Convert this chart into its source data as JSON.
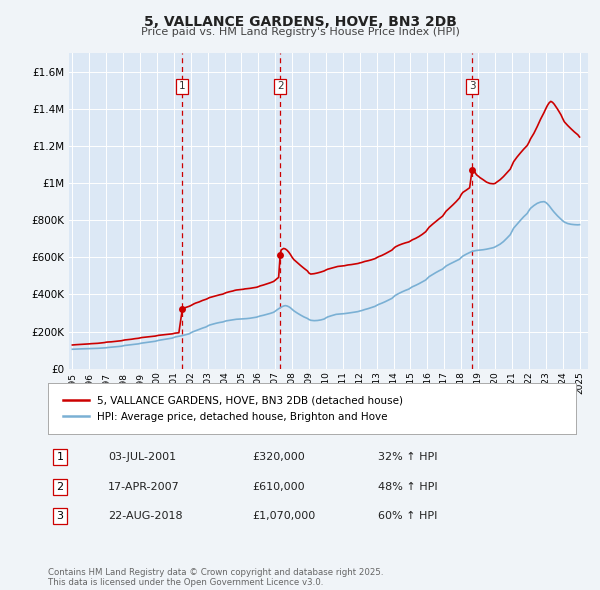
{
  "title": "5, VALLANCE GARDENS, HOVE, BN3 2DB",
  "subtitle": "Price paid vs. HM Land Registry's House Price Index (HPI)",
  "background_color": "#f0f4f8",
  "plot_bg_color": "#dce8f5",
  "grid_color": "#ffffff",
  "ylim": [
    0,
    1700000
  ],
  "yticks": [
    0,
    200000,
    400000,
    600000,
    800000,
    1000000,
    1200000,
    1400000,
    1600000
  ],
  "ytick_labels": [
    "£0",
    "£200K",
    "£400K",
    "£600K",
    "£800K",
    "£1M",
    "£1.2M",
    "£1.4M",
    "£1.6M"
  ],
  "sale_color": "#cc0000",
  "hpi_color": "#7ab0d4",
  "marker_color": "#cc0000",
  "vline_color": "#cc0000",
  "legend_entry1": "5, VALLANCE GARDENS, HOVE, BN3 2DB (detached house)",
  "legend_entry2": "HPI: Average price, detached house, Brighton and Hove",
  "transactions": [
    {
      "num": 1,
      "date": "03-JUL-2001",
      "price": "£320,000",
      "pct": "32% ↑ HPI",
      "x_year": 2001.5
    },
    {
      "num": 2,
      "date": "17-APR-2007",
      "price": "£610,000",
      "pct": "48% ↑ HPI",
      "x_year": 2007.29
    },
    {
      "num": 3,
      "date": "22-AUG-2018",
      "price": "£1,070,000",
      "pct": "60% ↑ HPI",
      "x_year": 2018.64
    }
  ],
  "footnote": "Contains HM Land Registry data © Crown copyright and database right 2025.\nThis data is licensed under the Open Government Licence v3.0.",
  "sale_data": [
    [
      1995.0,
      128000
    ],
    [
      1995.1,
      129000
    ],
    [
      1995.2,
      129500
    ],
    [
      1995.3,
      130000
    ],
    [
      1995.5,
      131000
    ],
    [
      1995.7,
      132000
    ],
    [
      1995.9,
      133000
    ],
    [
      1996.0,
      134000
    ],
    [
      1996.1,
      135000
    ],
    [
      1996.3,
      136000
    ],
    [
      1996.5,
      137000
    ],
    [
      1996.7,
      139000
    ],
    [
      1996.9,
      141000
    ],
    [
      1997.0,
      143000
    ],
    [
      1997.1,
      144000
    ],
    [
      1997.3,
      145000
    ],
    [
      1997.5,
      147000
    ],
    [
      1997.7,
      149000
    ],
    [
      1997.9,
      151000
    ],
    [
      1998.0,
      153000
    ],
    [
      1998.1,
      155000
    ],
    [
      1998.3,
      157000
    ],
    [
      1998.5,
      159000
    ],
    [
      1998.7,
      162000
    ],
    [
      1998.9,
      164000
    ],
    [
      1999.0,
      166000
    ],
    [
      1999.1,
      168000
    ],
    [
      1999.3,
      170000
    ],
    [
      1999.5,
      172000
    ],
    [
      1999.7,
      174000
    ],
    [
      1999.9,
      176000
    ],
    [
      2000.0,
      178000
    ],
    [
      2000.1,
      180000
    ],
    [
      2000.3,
      182000
    ],
    [
      2000.5,
      184000
    ],
    [
      2000.7,
      186000
    ],
    [
      2000.9,
      188000
    ],
    [
      2001.0,
      190000
    ],
    [
      2001.1,
      192000
    ],
    [
      2001.3,
      194000
    ],
    [
      2001.5,
      320000
    ],
    [
      2001.7,
      330000
    ],
    [
      2001.9,
      336000
    ],
    [
      2002.0,
      340000
    ],
    [
      2002.1,
      345000
    ],
    [
      2002.2,
      350000
    ],
    [
      2002.3,
      354000
    ],
    [
      2002.5,
      360000
    ],
    [
      2002.7,
      368000
    ],
    [
      2002.9,
      374000
    ],
    [
      2003.0,
      378000
    ],
    [
      2003.1,
      383000
    ],
    [
      2003.3,
      388000
    ],
    [
      2003.5,
      393000
    ],
    [
      2003.7,
      398000
    ],
    [
      2003.9,
      402000
    ],
    [
      2004.0,
      406000
    ],
    [
      2004.1,
      410000
    ],
    [
      2004.3,
      415000
    ],
    [
      2004.5,
      419000
    ],
    [
      2004.6,
      422000
    ],
    [
      2004.7,
      424000
    ],
    [
      2004.8,
      425000
    ],
    [
      2004.9,
      426000
    ],
    [
      2005.0,
      427000
    ],
    [
      2005.1,
      428000
    ],
    [
      2005.2,
      430000
    ],
    [
      2005.3,
      431000
    ],
    [
      2005.5,
      433000
    ],
    [
      2005.7,
      436000
    ],
    [
      2005.9,
      439000
    ],
    [
      2006.0,
      442000
    ],
    [
      2006.1,
      446000
    ],
    [
      2006.3,
      451000
    ],
    [
      2006.5,
      457000
    ],
    [
      2006.7,
      463000
    ],
    [
      2006.9,
      470000
    ],
    [
      2007.0,
      477000
    ],
    [
      2007.1,
      485000
    ],
    [
      2007.2,
      492000
    ],
    [
      2007.29,
      610000
    ],
    [
      2007.35,
      640000
    ],
    [
      2007.5,
      648000
    ],
    [
      2007.6,
      645000
    ],
    [
      2007.7,
      638000
    ],
    [
      2007.8,
      628000
    ],
    [
      2007.9,
      615000
    ],
    [
      2008.0,
      600000
    ],
    [
      2008.1,
      588000
    ],
    [
      2008.3,
      572000
    ],
    [
      2008.5,
      556000
    ],
    [
      2008.7,
      541000
    ],
    [
      2008.9,
      527000
    ],
    [
      2009.0,
      515000
    ],
    [
      2009.1,
      510000
    ],
    [
      2009.3,
      512000
    ],
    [
      2009.5,
      516000
    ],
    [
      2009.7,
      521000
    ],
    [
      2009.9,
      527000
    ],
    [
      2010.0,
      532000
    ],
    [
      2010.1,
      536000
    ],
    [
      2010.3,
      541000
    ],
    [
      2010.5,
      546000
    ],
    [
      2010.6,
      549000
    ],
    [
      2010.7,
      551000
    ],
    [
      2010.8,
      552000
    ],
    [
      2010.9,
      553000
    ],
    [
      2011.0,
      554000
    ],
    [
      2011.1,
      555000
    ],
    [
      2011.2,
      557000
    ],
    [
      2011.3,
      559000
    ],
    [
      2011.5,
      561000
    ],
    [
      2011.7,
      564000
    ],
    [
      2011.9,
      567000
    ],
    [
      2012.0,
      570000
    ],
    [
      2012.1,
      572000
    ],
    [
      2012.2,
      575000
    ],
    [
      2012.3,
      578000
    ],
    [
      2012.5,
      582000
    ],
    [
      2012.7,
      587000
    ],
    [
      2012.9,
      593000
    ],
    [
      2013.0,
      598000
    ],
    [
      2013.1,
      603000
    ],
    [
      2013.3,
      610000
    ],
    [
      2013.5,
      619000
    ],
    [
      2013.7,
      629000
    ],
    [
      2013.9,
      639000
    ],
    [
      2014.0,
      648000
    ],
    [
      2014.1,
      656000
    ],
    [
      2014.3,
      665000
    ],
    [
      2014.5,
      672000
    ],
    [
      2014.7,
      678000
    ],
    [
      2014.9,
      683000
    ],
    [
      2015.0,
      688000
    ],
    [
      2015.1,
      694000
    ],
    [
      2015.3,
      702000
    ],
    [
      2015.5,
      712000
    ],
    [
      2015.7,
      724000
    ],
    [
      2015.9,
      738000
    ],
    [
      2016.0,
      750000
    ],
    [
      2016.1,
      762000
    ],
    [
      2016.3,
      778000
    ],
    [
      2016.5,
      793000
    ],
    [
      2016.7,
      808000
    ],
    [
      2016.9,
      822000
    ],
    [
      2017.0,
      835000
    ],
    [
      2017.1,
      848000
    ],
    [
      2017.3,
      865000
    ],
    [
      2017.5,
      882000
    ],
    [
      2017.7,
      900000
    ],
    [
      2017.9,
      920000
    ],
    [
      2018.0,
      938000
    ],
    [
      2018.1,
      950000
    ],
    [
      2018.3,
      962000
    ],
    [
      2018.5,
      975000
    ],
    [
      2018.64,
      1070000
    ],
    [
      2018.8,
      1060000
    ],
    [
      2018.9,
      1045000
    ],
    [
      2019.0,
      1038000
    ],
    [
      2019.1,
      1030000
    ],
    [
      2019.3,
      1018000
    ],
    [
      2019.5,
      1005000
    ],
    [
      2019.7,
      998000
    ],
    [
      2019.9,
      996000
    ],
    [
      2020.0,
      998000
    ],
    [
      2020.1,
      1005000
    ],
    [
      2020.3,
      1018000
    ],
    [
      2020.5,
      1035000
    ],
    [
      2020.7,
      1055000
    ],
    [
      2020.9,
      1075000
    ],
    [
      2021.0,
      1095000
    ],
    [
      2021.1,
      1115000
    ],
    [
      2021.3,
      1140000
    ],
    [
      2021.5,
      1162000
    ],
    [
      2021.7,
      1183000
    ],
    [
      2021.9,
      1202000
    ],
    [
      2022.0,
      1218000
    ],
    [
      2022.1,
      1238000
    ],
    [
      2022.3,
      1268000
    ],
    [
      2022.5,
      1305000
    ],
    [
      2022.7,
      1345000
    ],
    [
      2022.9,
      1380000
    ],
    [
      2023.0,
      1400000
    ],
    [
      2023.1,
      1418000
    ],
    [
      2023.2,
      1432000
    ],
    [
      2023.3,
      1440000
    ],
    [
      2023.4,
      1435000
    ],
    [
      2023.5,
      1425000
    ],
    [
      2023.6,
      1412000
    ],
    [
      2023.7,
      1398000
    ],
    [
      2023.9,
      1368000
    ],
    [
      2024.0,
      1348000
    ],
    [
      2024.1,
      1330000
    ],
    [
      2024.3,
      1310000
    ],
    [
      2024.5,
      1292000
    ],
    [
      2024.7,
      1275000
    ],
    [
      2024.9,
      1260000
    ],
    [
      2025.0,
      1248000
    ]
  ],
  "hpi_data": [
    [
      1995.0,
      105000
    ],
    [
      1995.1,
      105500
    ],
    [
      1995.2,
      106000
    ],
    [
      1995.3,
      106500
    ],
    [
      1995.5,
      107000
    ],
    [
      1995.7,
      107500
    ],
    [
      1995.9,
      108000
    ],
    [
      1996.0,
      108500
    ],
    [
      1996.1,
      109000
    ],
    [
      1996.3,
      109500
    ],
    [
      1996.5,
      110000
    ],
    [
      1996.7,
      111000
    ],
    [
      1996.9,
      112000
    ],
    [
      1997.0,
      113000
    ],
    [
      1997.1,
      114500
    ],
    [
      1997.3,
      116000
    ],
    [
      1997.5,
      117500
    ],
    [
      1997.7,
      119500
    ],
    [
      1997.9,
      121500
    ],
    [
      1998.0,
      123500
    ],
    [
      1998.1,
      125500
    ],
    [
      1998.3,
      127500
    ],
    [
      1998.5,
      129500
    ],
    [
      1998.7,
      132000
    ],
    [
      1998.9,
      134000
    ],
    [
      1999.0,
      136000
    ],
    [
      1999.1,
      138000
    ],
    [
      1999.3,
      140500
    ],
    [
      1999.5,
      143000
    ],
    [
      1999.7,
      145500
    ],
    [
      1999.9,
      148000
    ],
    [
      2000.0,
      150500
    ],
    [
      2000.1,
      153000
    ],
    [
      2000.3,
      156000
    ],
    [
      2000.5,
      159000
    ],
    [
      2000.7,
      162000
    ],
    [
      2000.9,
      165000
    ],
    [
      2001.0,
      168000
    ],
    [
      2001.1,
      171500
    ],
    [
      2001.3,
      175000
    ],
    [
      2001.5,
      178500
    ],
    [
      2001.7,
      183000
    ],
    [
      2001.9,
      188000
    ],
    [
      2002.0,
      193000
    ],
    [
      2002.1,
      198000
    ],
    [
      2002.3,
      205000
    ],
    [
      2002.5,
      212000
    ],
    [
      2002.7,
      219000
    ],
    [
      2002.9,
      225000
    ],
    [
      2003.0,
      230000
    ],
    [
      2003.1,
      235000
    ],
    [
      2003.3,
      240000
    ],
    [
      2003.5,
      245000
    ],
    [
      2003.7,
      249000
    ],
    [
      2003.9,
      252000
    ],
    [
      2004.0,
      255000
    ],
    [
      2004.1,
      258000
    ],
    [
      2004.3,
      261000
    ],
    [
      2004.5,
      264000
    ],
    [
      2004.6,
      265500
    ],
    [
      2004.7,
      266500
    ],
    [
      2004.8,
      267000
    ],
    [
      2004.9,
      267500
    ],
    [
      2005.0,
      268000
    ],
    [
      2005.1,
      268500
    ],
    [
      2005.2,
      269000
    ],
    [
      2005.3,
      270000
    ],
    [
      2005.5,
      272000
    ],
    [
      2005.7,
      275000
    ],
    [
      2005.9,
      278000
    ],
    [
      2006.0,
      281000
    ],
    [
      2006.1,
      284000
    ],
    [
      2006.3,
      288000
    ],
    [
      2006.5,
      293000
    ],
    [
      2006.7,
      298000
    ],
    [
      2006.9,
      304000
    ],
    [
      2007.0,
      310000
    ],
    [
      2007.1,
      317000
    ],
    [
      2007.2,
      323000
    ],
    [
      2007.29,
      328000
    ],
    [
      2007.35,
      332000
    ],
    [
      2007.5,
      338000
    ],
    [
      2007.6,
      340000
    ],
    [
      2007.7,
      338000
    ],
    [
      2007.8,
      334000
    ],
    [
      2007.9,
      328000
    ],
    [
      2008.0,
      320000
    ],
    [
      2008.1,
      312000
    ],
    [
      2008.3,
      300000
    ],
    [
      2008.5,
      289000
    ],
    [
      2008.7,
      279000
    ],
    [
      2008.9,
      271000
    ],
    [
      2009.0,
      265000
    ],
    [
      2009.1,
      261000
    ],
    [
      2009.3,
      259000
    ],
    [
      2009.5,
      260000
    ],
    [
      2009.7,
      263000
    ],
    [
      2009.9,
      268000
    ],
    [
      2010.0,
      274000
    ],
    [
      2010.1,
      279000
    ],
    [
      2010.3,
      285000
    ],
    [
      2010.5,
      290000
    ],
    [
      2010.6,
      293000
    ],
    [
      2010.7,
      294000
    ],
    [
      2010.8,
      295000
    ],
    [
      2010.9,
      295500
    ],
    [
      2011.0,
      296000
    ],
    [
      2011.1,
      297000
    ],
    [
      2011.2,
      298000
    ],
    [
      2011.3,
      299500
    ],
    [
      2011.5,
      302000
    ],
    [
      2011.7,
      305000
    ],
    [
      2011.9,
      308000
    ],
    [
      2012.0,
      311000
    ],
    [
      2012.1,
      313000
    ],
    [
      2012.2,
      316000
    ],
    [
      2012.3,
      319000
    ],
    [
      2012.5,
      324000
    ],
    [
      2012.7,
      330000
    ],
    [
      2012.9,
      336000
    ],
    [
      2013.0,
      341000
    ],
    [
      2013.1,
      346000
    ],
    [
      2013.3,
      353000
    ],
    [
      2013.5,
      361000
    ],
    [
      2013.7,
      370000
    ],
    [
      2013.9,
      379000
    ],
    [
      2014.0,
      387000
    ],
    [
      2014.1,
      395000
    ],
    [
      2014.3,
      405000
    ],
    [
      2014.5,
      414000
    ],
    [
      2014.7,
      422000
    ],
    [
      2014.9,
      429000
    ],
    [
      2015.0,
      435000
    ],
    [
      2015.1,
      441000
    ],
    [
      2015.3,
      449000
    ],
    [
      2015.5,
      458000
    ],
    [
      2015.7,
      468000
    ],
    [
      2015.9,
      478000
    ],
    [
      2016.0,
      487000
    ],
    [
      2016.1,
      496000
    ],
    [
      2016.3,
      507000
    ],
    [
      2016.5,
      518000
    ],
    [
      2016.7,
      528000
    ],
    [
      2016.9,
      537000
    ],
    [
      2017.0,
      545000
    ],
    [
      2017.1,
      553000
    ],
    [
      2017.3,
      563000
    ],
    [
      2017.5,
      572000
    ],
    [
      2017.7,
      581000
    ],
    [
      2017.9,
      590000
    ],
    [
      2018.0,
      599000
    ],
    [
      2018.1,
      607000
    ],
    [
      2018.3,
      617000
    ],
    [
      2018.5,
      626000
    ],
    [
      2018.64,
      632000
    ],
    [
      2018.8,
      635000
    ],
    [
      2018.9,
      637000
    ],
    [
      2019.0,
      638000
    ],
    [
      2019.1,
      639000
    ],
    [
      2019.3,
      641000
    ],
    [
      2019.5,
      644000
    ],
    [
      2019.7,
      648000
    ],
    [
      2019.9,
      652000
    ],
    [
      2020.0,
      656000
    ],
    [
      2020.1,
      661000
    ],
    [
      2020.3,
      671000
    ],
    [
      2020.5,
      685000
    ],
    [
      2020.7,
      703000
    ],
    [
      2020.9,
      722000
    ],
    [
      2021.0,
      740000
    ],
    [
      2021.1,
      757000
    ],
    [
      2021.3,
      778000
    ],
    [
      2021.5,
      799000
    ],
    [
      2021.7,
      819000
    ],
    [
      2021.9,
      836000
    ],
    [
      2022.0,
      851000
    ],
    [
      2022.1,
      864000
    ],
    [
      2022.3,
      879000
    ],
    [
      2022.5,
      891000
    ],
    [
      2022.7,
      898000
    ],
    [
      2022.9,
      900000
    ],
    [
      2023.0,
      896000
    ],
    [
      2023.1,
      888000
    ],
    [
      2023.2,
      878000
    ],
    [
      2023.3,
      866000
    ],
    [
      2023.4,
      854000
    ],
    [
      2023.5,
      843000
    ],
    [
      2023.6,
      833000
    ],
    [
      2023.7,
      823000
    ],
    [
      2023.9,
      806000
    ],
    [
      2024.0,
      797000
    ],
    [
      2024.1,
      790000
    ],
    [
      2024.3,
      782000
    ],
    [
      2024.5,
      778000
    ],
    [
      2024.7,
      776000
    ],
    [
      2024.9,
      775000
    ],
    [
      2025.0,
      776000
    ]
  ],
  "xlim": [
    1994.8,
    2025.5
  ],
  "xticks": [
    1995,
    1996,
    1997,
    1998,
    1999,
    2000,
    2001,
    2002,
    2003,
    2004,
    2005,
    2006,
    2007,
    2008,
    2009,
    2010,
    2011,
    2012,
    2013,
    2014,
    2015,
    2016,
    2017,
    2018,
    2019,
    2020,
    2021,
    2022,
    2023,
    2024,
    2025
  ]
}
